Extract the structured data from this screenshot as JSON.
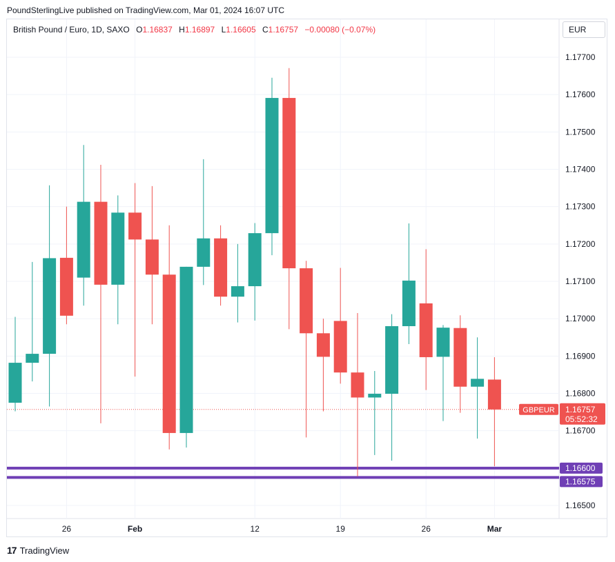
{
  "header": {
    "published_by": "PoundSterlingLive published on TradingView.com, Mar 01, 2024 16:07 UTC"
  },
  "legend": {
    "symbol": "British Pound / Euro, 1D, SAXO",
    "open_label": "O",
    "open": "1.16837",
    "high_label": "H",
    "high": "1.16897",
    "low_label": "L",
    "low": "1.16605",
    "close_label": "C",
    "close": "1.16757",
    "change": "−0.00080 (−0.07%)"
  },
  "currency_button": "EUR",
  "footer": {
    "brand": "TradingView",
    "icon": "tradingview-logo-icon"
  },
  "colors": {
    "up": "#26a69a",
    "down": "#ef5350",
    "level": "#6f3fb5",
    "grid": "#f0f3fa"
  },
  "chart_data": {
    "type": "candlestick",
    "ylim": [
      1.1645,
      1.1779
    ],
    "y_ticks": [
      "1.16500",
      "1.16700",
      "1.16800",
      "1.16900",
      "1.17000",
      "1.17100",
      "1.17200",
      "1.17300",
      "1.17400",
      "1.17500",
      "1.17600",
      "1.17700"
    ],
    "x_ticks": [
      {
        "index": 3,
        "label": "26"
      },
      {
        "index": 7,
        "label": "Feb"
      },
      {
        "index": 14,
        "label": "12"
      },
      {
        "index": 19,
        "label": "19"
      },
      {
        "index": 24,
        "label": "26"
      },
      {
        "index": 28,
        "label": "Mar"
      }
    ],
    "candles": [
      {
        "o": 1.16775,
        "h": 1.17005,
        "l": 1.16752,
        "c": 1.16882
      },
      {
        "o": 1.16882,
        "h": 1.17152,
        "l": 1.16832,
        "c": 1.16906
      },
      {
        "o": 1.16906,
        "h": 1.17357,
        "l": 1.16765,
        "c": 1.17162
      },
      {
        "o": 1.17163,
        "h": 1.173,
        "l": 1.16985,
        "c": 1.17008
      },
      {
        "o": 1.1711,
        "h": 1.17465,
        "l": 1.17035,
        "c": 1.17313
      },
      {
        "o": 1.17313,
        "h": 1.17412,
        "l": 1.1672,
        "c": 1.17091
      },
      {
        "o": 1.17091,
        "h": 1.1733,
        "l": 1.16985,
        "c": 1.17284
      },
      {
        "o": 1.17284,
        "h": 1.17363,
        "l": 1.16845,
        "c": 1.17212
      },
      {
        "o": 1.17212,
        "h": 1.17355,
        "l": 1.16985,
        "c": 1.17118
      },
      {
        "o": 1.17118,
        "h": 1.1725,
        "l": 1.1665,
        "c": 1.16694
      },
      {
        "o": 1.16694,
        "h": 1.17139,
        "l": 1.16655,
        "c": 1.17139
      },
      {
        "o": 1.17139,
        "h": 1.17427,
        "l": 1.1709,
        "c": 1.17215
      },
      {
        "o": 1.17215,
        "h": 1.1725,
        "l": 1.17035,
        "c": 1.17059
      },
      {
        "o": 1.17059,
        "h": 1.172,
        "l": 1.1699,
        "c": 1.17087
      },
      {
        "o": 1.17087,
        "h": 1.17256,
        "l": 1.16995,
        "c": 1.17229
      },
      {
        "o": 1.17229,
        "h": 1.17645,
        "l": 1.1717,
        "c": 1.17591
      },
      {
        "o": 1.17591,
        "h": 1.17671,
        "l": 1.16972,
        "c": 1.17135
      },
      {
        "o": 1.17135,
        "h": 1.17155,
        "l": 1.16682,
        "c": 1.16961
      },
      {
        "o": 1.16961,
        "h": 1.17,
        "l": 1.16752,
        "c": 1.16898
      },
      {
        "o": 1.16994,
        "h": 1.17136,
        "l": 1.16826,
        "c": 1.16856
      },
      {
        "o": 1.16856,
        "h": 1.17015,
        "l": 1.16578,
        "c": 1.16789
      },
      {
        "o": 1.16789,
        "h": 1.1686,
        "l": 1.16635,
        "c": 1.16799
      },
      {
        "o": 1.16799,
        "h": 1.17012,
        "l": 1.1662,
        "c": 1.1698
      },
      {
        "o": 1.1698,
        "h": 1.17255,
        "l": 1.16932,
        "c": 1.17102
      },
      {
        "o": 1.17041,
        "h": 1.17186,
        "l": 1.16809,
        "c": 1.16897
      },
      {
        "o": 1.16898,
        "h": 1.16983,
        "l": 1.16726,
        "c": 1.16976
      },
      {
        "o": 1.16975,
        "h": 1.17009,
        "l": 1.16748,
        "c": 1.16818
      },
      {
        "o": 1.16818,
        "h": 1.1695,
        "l": 1.16679,
        "c": 1.16839
      },
      {
        "o": 1.16837,
        "h": 1.16897,
        "l": 1.16605,
        "c": 1.16757
      }
    ],
    "levels": [
      {
        "value": "1.16600",
        "y": 1.166
      },
      {
        "value": "1.16575",
        "y": 1.16575
      }
    ],
    "price_label": {
      "symbol": "GBPEUR",
      "price": "1.16757",
      "countdown": "05:52:32"
    }
  }
}
